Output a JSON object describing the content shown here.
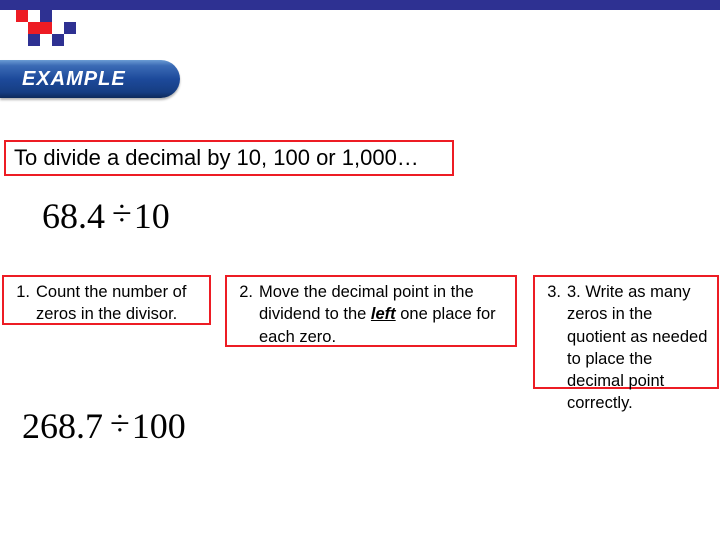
{
  "colors": {
    "border_blue": "#2e3192",
    "red": "#ed1c24",
    "white": "#ffffff",
    "badge_gradient_top": "#6b9cd4",
    "badge_gradient_bottom": "#0e2a5a"
  },
  "badge": {
    "label": "EXAMPLE"
  },
  "header": {
    "text": "To divide a decimal by 10, 100 or 1,000…"
  },
  "math": {
    "expr1_left": "68.4",
    "expr1_right": "10",
    "expr2_left": "268.7",
    "expr2_right": "100",
    "divide_symbol": "÷"
  },
  "steps": [
    {
      "num": "1.",
      "text": "Count the number of zeros in the divisor."
    },
    {
      "num": "2.",
      "text_before": "Move the decimal point in the dividend to the ",
      "emphasized": "left",
      "text_after": " one place for each zero."
    },
    {
      "num": "3.",
      "text": "3.  Write as many zeros in the quotient as needed to place the decimal point correctly."
    }
  ]
}
